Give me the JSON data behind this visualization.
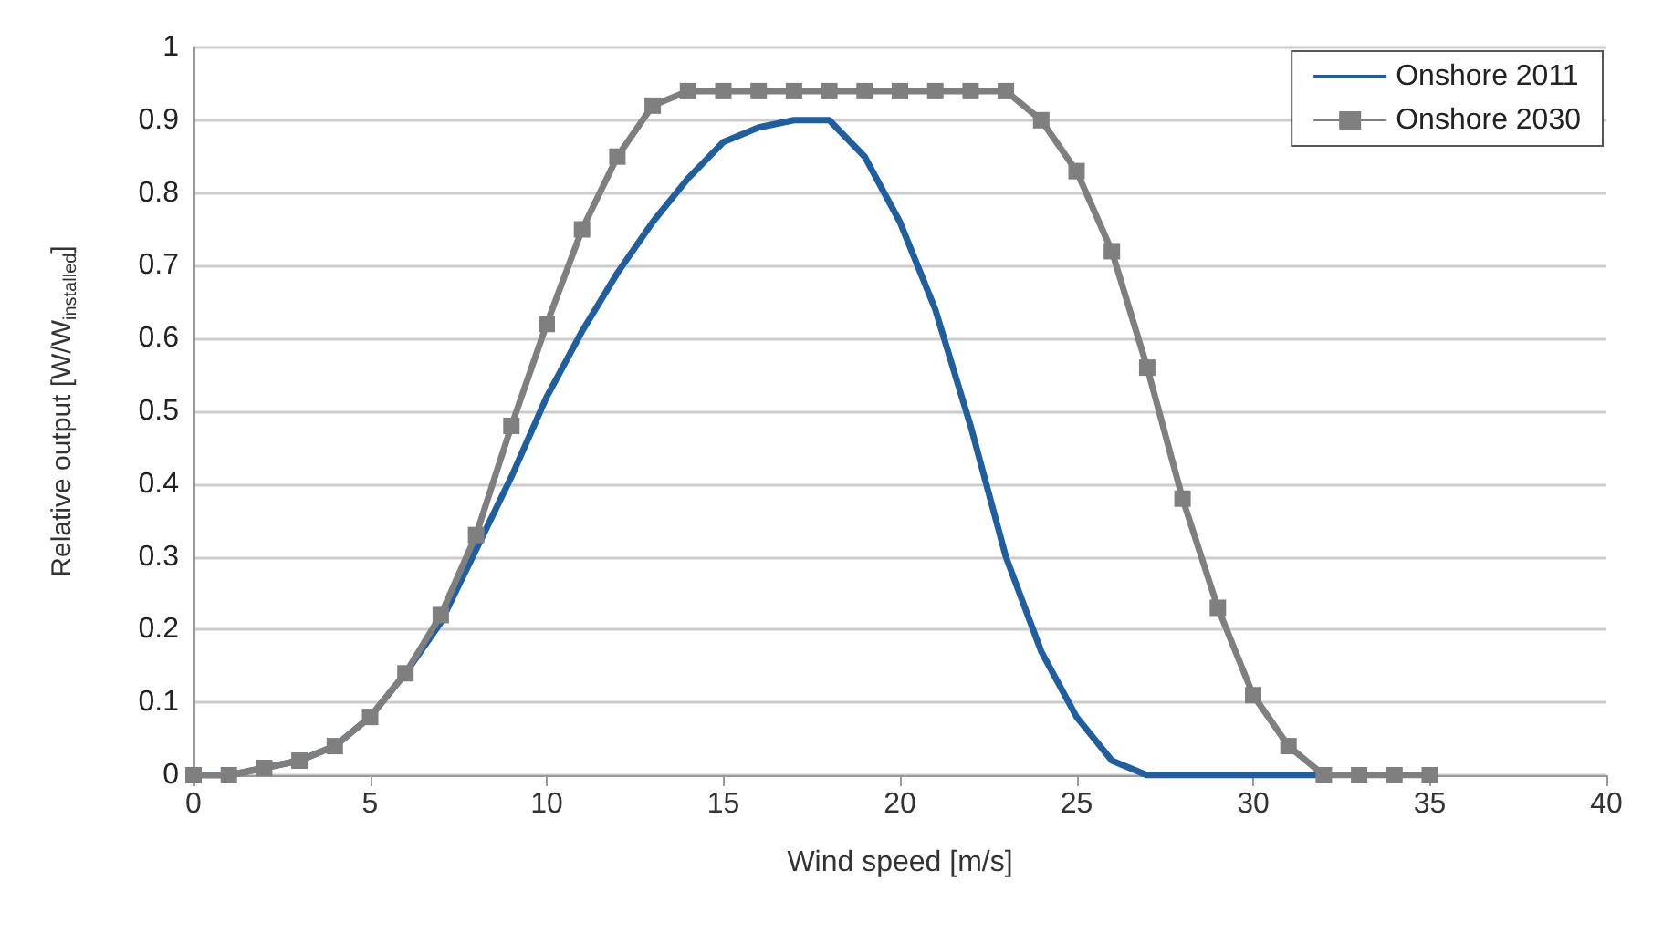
{
  "chart_data": {
    "type": "line",
    "xlabel": "Wind speed [m/s]",
    "ylabel": "Relative output [W/W$_{installed}$]",
    "x": [
      0,
      1,
      2,
      3,
      4,
      5,
      6,
      7,
      8,
      9,
      10,
      11,
      12,
      13,
      14,
      15,
      16,
      17,
      18,
      19,
      20,
      21,
      22,
      23,
      24,
      25,
      26,
      27,
      28,
      29,
      30,
      31,
      32,
      33,
      34,
      35
    ],
    "series": [
      {
        "name": "Onshore 2011",
        "color": "#1f5f9f",
        "marker": "none",
        "x": [
          0,
          1,
          2,
          3,
          4,
          5,
          6,
          7,
          8,
          9,
          10,
          11,
          12,
          13,
          14,
          15,
          16,
          17,
          18,
          19,
          20,
          21,
          22,
          23,
          24,
          25,
          26,
          27,
          28,
          29,
          30,
          31,
          32
        ],
        "values": [
          0,
          0,
          0.01,
          0.02,
          0.04,
          0.08,
          0.14,
          0.21,
          0.31,
          0.41,
          0.52,
          0.61,
          0.69,
          0.76,
          0.82,
          0.87,
          0.89,
          0.9,
          0.9,
          0.85,
          0.76,
          0.64,
          0.48,
          0.3,
          0.17,
          0.08,
          0.02,
          0,
          0,
          0,
          0,
          0,
          0
        ]
      },
      {
        "name": "Onshore 2030",
        "color": "#7f7f7f",
        "marker": "square",
        "values": [
          0,
          0,
          0.01,
          0.02,
          0.04,
          0.08,
          0.14,
          0.22,
          0.33,
          0.48,
          0.62,
          0.75,
          0.85,
          0.92,
          0.94,
          0.94,
          0.94,
          0.94,
          0.94,
          0.94,
          0.94,
          0.94,
          0.94,
          0.94,
          0.9,
          0.83,
          0.72,
          0.56,
          0.38,
          0.23,
          0.11,
          0.04,
          0,
          0,
          0,
          0
        ]
      }
    ],
    "xlim": [
      0,
      40
    ],
    "xticks": [
      0,
      5,
      10,
      15,
      20,
      25,
      30,
      35,
      40
    ],
    "ylim": [
      0,
      1
    ],
    "yticks": [
      0,
      0.1,
      0.2,
      0.3,
      0.4,
      0.5,
      0.6,
      0.7,
      0.8,
      0.9,
      1
    ],
    "grid": "y",
    "legend": "top right"
  }
}
